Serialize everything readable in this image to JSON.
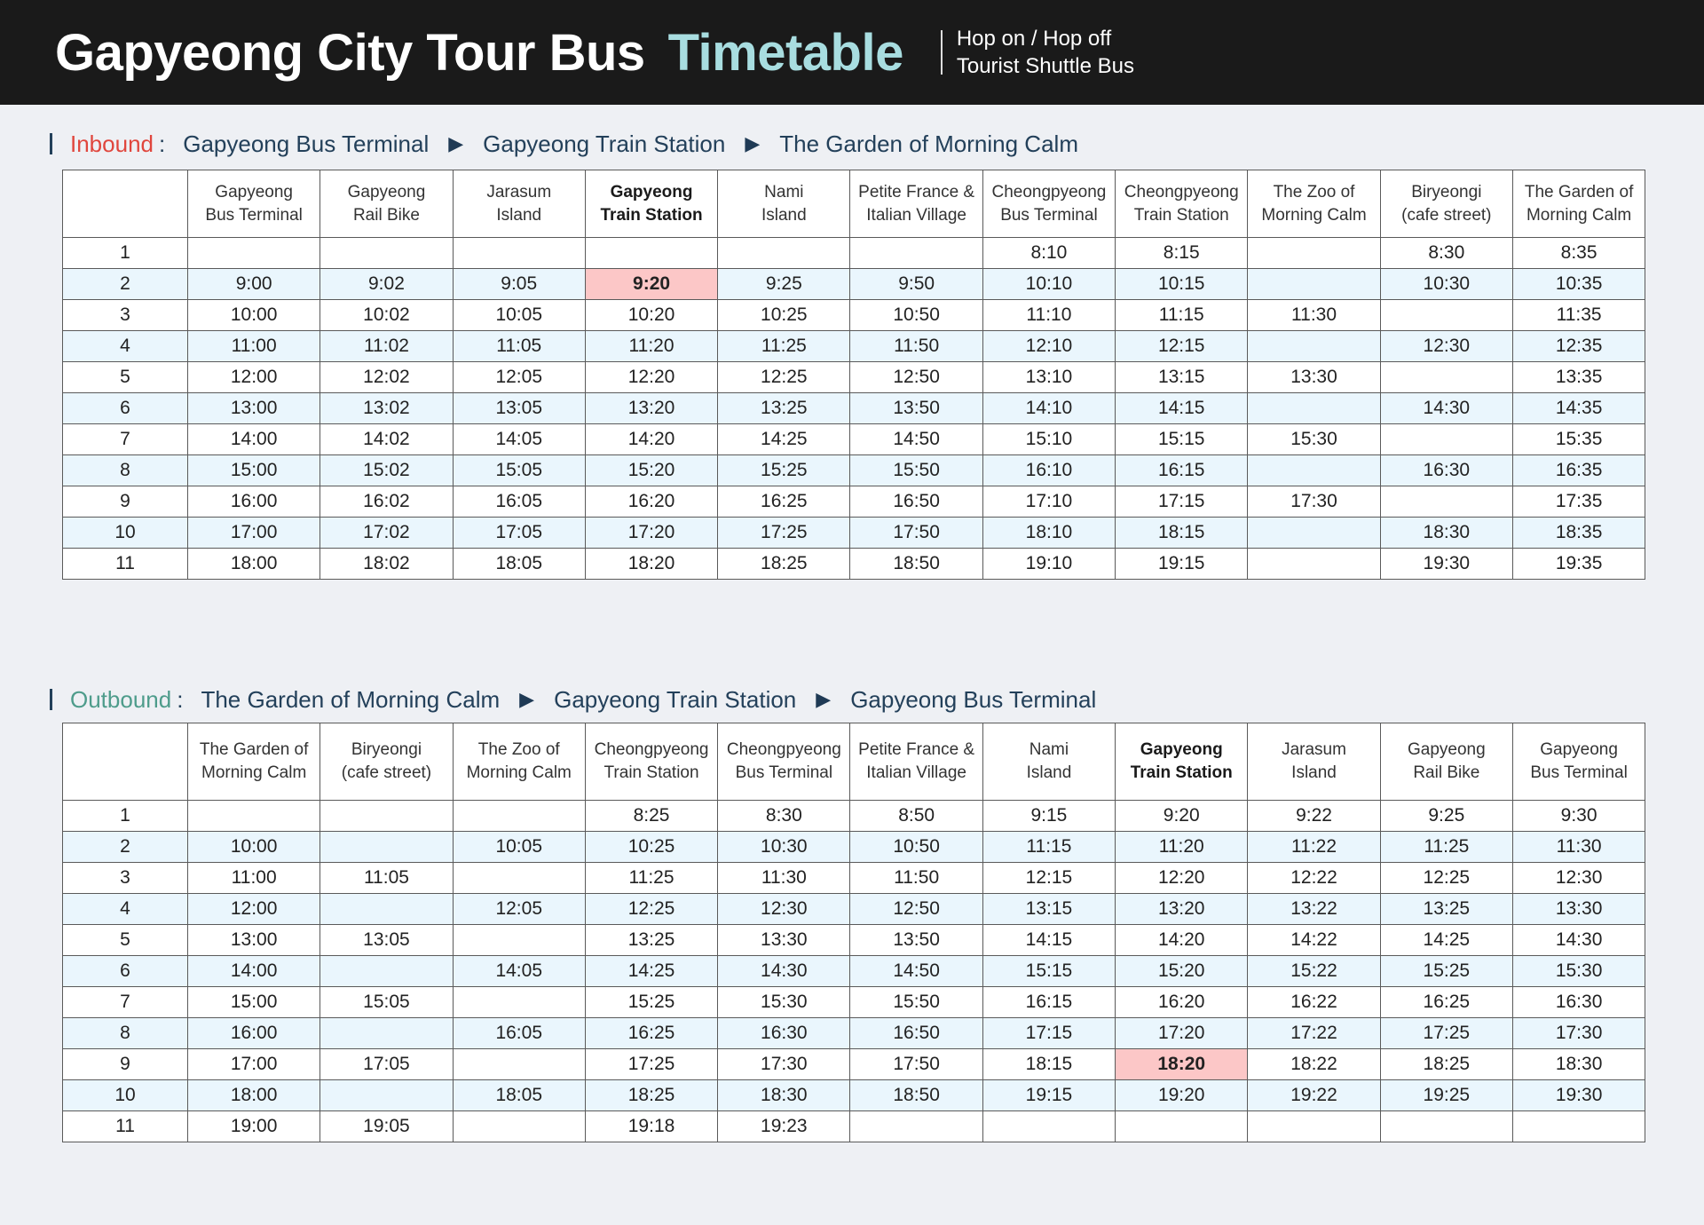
{
  "header": {
    "title": "Gapyeong City Tour Bus",
    "title_accent": "Timetable",
    "subtitle_line1": "Hop on / Hop off",
    "subtitle_line2": "Tourist Shuttle Bus"
  },
  "inbound": {
    "label": "Inbound",
    "colon": ":",
    "route": [
      "Gapyeong Bus Terminal",
      "Gapyeong Train Station",
      "The Garden of Morning Calm"
    ],
    "arrow": "▶",
    "columns": [
      [
        "Gapyeong",
        "Bus Terminal"
      ],
      [
        "Gapyeong",
        "Rail Bike"
      ],
      [
        "Jarasum",
        "Island"
      ],
      [
        "Gapyeong",
        "Train Station"
      ],
      [
        "Nami",
        "Island"
      ],
      [
        "Petite France &",
        "Italian Village"
      ],
      [
        "Cheongpyeong",
        "Bus Terminal"
      ],
      [
        "Cheongpyeong",
        "Train Station"
      ],
      [
        "The Zoo of",
        "Morning Calm"
      ],
      [
        "Biryeongi",
        "(cafe street)"
      ],
      [
        "The Garden of",
        "Morning Calm"
      ]
    ],
    "bold_column": 3,
    "rows": [
      [
        "1",
        "",
        "",
        "",
        "",
        "",
        "",
        "8:10",
        "8:15",
        "",
        "8:30",
        "8:35"
      ],
      [
        "2",
        "9:00",
        "9:02",
        "9:05",
        "9:20",
        "9:25",
        "9:50",
        "10:10",
        "10:15",
        "",
        "10:30",
        "10:35"
      ],
      [
        "3",
        "10:00",
        "10:02",
        "10:05",
        "10:20",
        "10:25",
        "10:50",
        "11:10",
        "11:15",
        "11:30",
        "",
        "11:35"
      ],
      [
        "4",
        "11:00",
        "11:02",
        "11:05",
        "11:20",
        "11:25",
        "11:50",
        "12:10",
        "12:15",
        "",
        "12:30",
        "12:35"
      ],
      [
        "5",
        "12:00",
        "12:02",
        "12:05",
        "12:20",
        "12:25",
        "12:50",
        "13:10",
        "13:15",
        "13:30",
        "",
        "13:35"
      ],
      [
        "6",
        "13:00",
        "13:02",
        "13:05",
        "13:20",
        "13:25",
        "13:50",
        "14:10",
        "14:15",
        "",
        "14:30",
        "14:35"
      ],
      [
        "7",
        "14:00",
        "14:02",
        "14:05",
        "14:20",
        "14:25",
        "14:50",
        "15:10",
        "15:15",
        "15:30",
        "",
        "15:35"
      ],
      [
        "8",
        "15:00",
        "15:02",
        "15:05",
        "15:20",
        "15:25",
        "15:50",
        "16:10",
        "16:15",
        "",
        "16:30",
        "16:35"
      ],
      [
        "9",
        "16:00",
        "16:02",
        "16:05",
        "16:20",
        "16:25",
        "16:50",
        "17:10",
        "17:15",
        "17:30",
        "",
        "17:35"
      ],
      [
        "10",
        "17:00",
        "17:02",
        "17:05",
        "17:20",
        "17:25",
        "17:50",
        "18:10",
        "18:15",
        "",
        "18:30",
        "18:35"
      ],
      [
        "11",
        "18:00",
        "18:02",
        "18:05",
        "18:20",
        "18:25",
        "18:50",
        "19:10",
        "19:15",
        "",
        "19:30",
        "19:35"
      ]
    ],
    "highlight": {
      "row": 1,
      "col": 4
    }
  },
  "outbound": {
    "label": "Outbound",
    "colon": ":",
    "route": [
      "The Garden of Morning Calm",
      "Gapyeong Train Station",
      "Gapyeong Bus Terminal"
    ],
    "arrow": "▶",
    "columns": [
      [
        "The Garden of",
        "Morning Calm"
      ],
      [
        "Biryeongi",
        "(cafe street)"
      ],
      [
        "The Zoo of",
        "Morning Calm"
      ],
      [
        "Cheongpyeong",
        "Train Station"
      ],
      [
        "Cheongpyeong",
        "Bus Terminal"
      ],
      [
        "Petite France &",
        "Italian Village"
      ],
      [
        "Nami",
        "Island"
      ],
      [
        "Gapyeong",
        "Train Station"
      ],
      [
        "Jarasum",
        "Island"
      ],
      [
        "Gapyeong",
        "Rail Bike"
      ],
      [
        "Gapyeong",
        "Bus Terminal"
      ]
    ],
    "bold_column": 7,
    "rows": [
      [
        "1",
        "",
        "",
        "",
        "8:25",
        "8:30",
        "8:50",
        "9:15",
        "9:20",
        "9:22",
        "9:25",
        "9:30"
      ],
      [
        "2",
        "10:00",
        "",
        "10:05",
        "10:25",
        "10:30",
        "10:50",
        "11:15",
        "11:20",
        "11:22",
        "11:25",
        "11:30"
      ],
      [
        "3",
        "11:00",
        "11:05",
        "",
        "11:25",
        "11:30",
        "11:50",
        "12:15",
        "12:20",
        "12:22",
        "12:25",
        "12:30"
      ],
      [
        "4",
        "12:00",
        "",
        "12:05",
        "12:25",
        "12:30",
        "12:50",
        "13:15",
        "13:20",
        "13:22",
        "13:25",
        "13:30"
      ],
      [
        "5",
        "13:00",
        "13:05",
        "",
        "13:25",
        "13:30",
        "13:50",
        "14:15",
        "14:20",
        "14:22",
        "14:25",
        "14:30"
      ],
      [
        "6",
        "14:00",
        "",
        "14:05",
        "14:25",
        "14:30",
        "14:50",
        "15:15",
        "15:20",
        "15:22",
        "15:25",
        "15:30"
      ],
      [
        "7",
        "15:00",
        "15:05",
        "",
        "15:25",
        "15:30",
        "15:50",
        "16:15",
        "16:20",
        "16:22",
        "16:25",
        "16:30"
      ],
      [
        "8",
        "16:00",
        "",
        "16:05",
        "16:25",
        "16:30",
        "16:50",
        "17:15",
        "17:20",
        "17:22",
        "17:25",
        "17:30"
      ],
      [
        "9",
        "17:00",
        "17:05",
        "",
        "17:25",
        "17:30",
        "17:50",
        "18:15",
        "18:20",
        "18:22",
        "18:25",
        "18:30"
      ],
      [
        "10",
        "18:00",
        "",
        "18:05",
        "18:25",
        "18:30",
        "18:50",
        "19:15",
        "19:20",
        "19:22",
        "19:25",
        "19:30"
      ],
      [
        "11",
        "19:00",
        "19:05",
        "",
        "19:18",
        "19:23",
        "",
        "",
        "",
        "",
        "",
        ""
      ]
    ],
    "highlight": {
      "row": 8,
      "col": 8
    }
  },
  "colors": {
    "header_bg": "#1a1a1a",
    "accent": "#a8dde0",
    "inbound": "#e0463d",
    "outbound": "#4e9c8b",
    "alt_row": "#eaf6fd",
    "highlight": "#fcc7c7"
  }
}
